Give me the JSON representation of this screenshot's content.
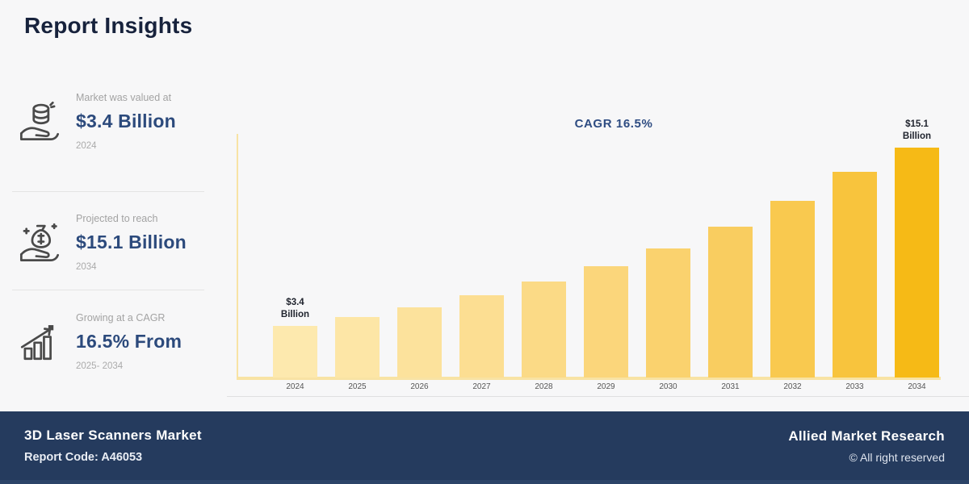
{
  "page": {
    "title": "Report Insights"
  },
  "sidebar": {
    "items": [
      {
        "icon": "coins-in-hand-icon",
        "label": "Market was valued at",
        "value": "$3.4 Billion",
        "period": "2024"
      },
      {
        "icon": "money-bag-in-hand-icon",
        "label": "Projected to reach",
        "value": "$15.1 Billion",
        "period": "2034"
      },
      {
        "icon": "growth-chart-icon",
        "label": "Growing at a CAGR",
        "value": "16.5% From",
        "period": "2025- 2034"
      }
    ]
  },
  "chart_data": {
    "type": "bar",
    "title": "CAGR 16.5%",
    "categories": [
      "2024",
      "2025",
      "2026",
      "2027",
      "2028",
      "2029",
      "2030",
      "2031",
      "2032",
      "2033",
      "2034"
    ],
    "values": [
      3.4,
      4.0,
      4.6,
      5.4,
      6.3,
      7.3,
      8.5,
      9.9,
      11.6,
      13.5,
      15.1
    ],
    "unit": "$ Billion",
    "ylim": [
      0,
      15.1
    ],
    "grid": false,
    "legend": "none",
    "first_bar_label": [
      "$3.4",
      "Billion"
    ],
    "last_bar_label": [
      "$15.1",
      "Billion"
    ],
    "bar_colors": [
      "#FDE9AE",
      "#FDE6A6",
      "#FCE29C",
      "#FCDE92",
      "#FBDA86",
      "#FBD67B",
      "#FAD26E",
      "#F9CD60",
      "#F9C94F",
      "#F8C43D",
      "#F6BA16"
    ],
    "axis_color": "#F8E3A4"
  },
  "footer": {
    "market": "3D Laser Scanners Market",
    "report_code": "Report Code: A46053",
    "brand": "Allied Market Research",
    "copyright": "© All right reserved"
  },
  "colors": {
    "page_bg": "#F7F7F8",
    "heading": "#17223C",
    "accent_navy": "#2C4A7C",
    "footer_bg": "#253B5E",
    "axis_yellow": "#F8E3A4",
    "muted_text": "#A3A3A3"
  }
}
